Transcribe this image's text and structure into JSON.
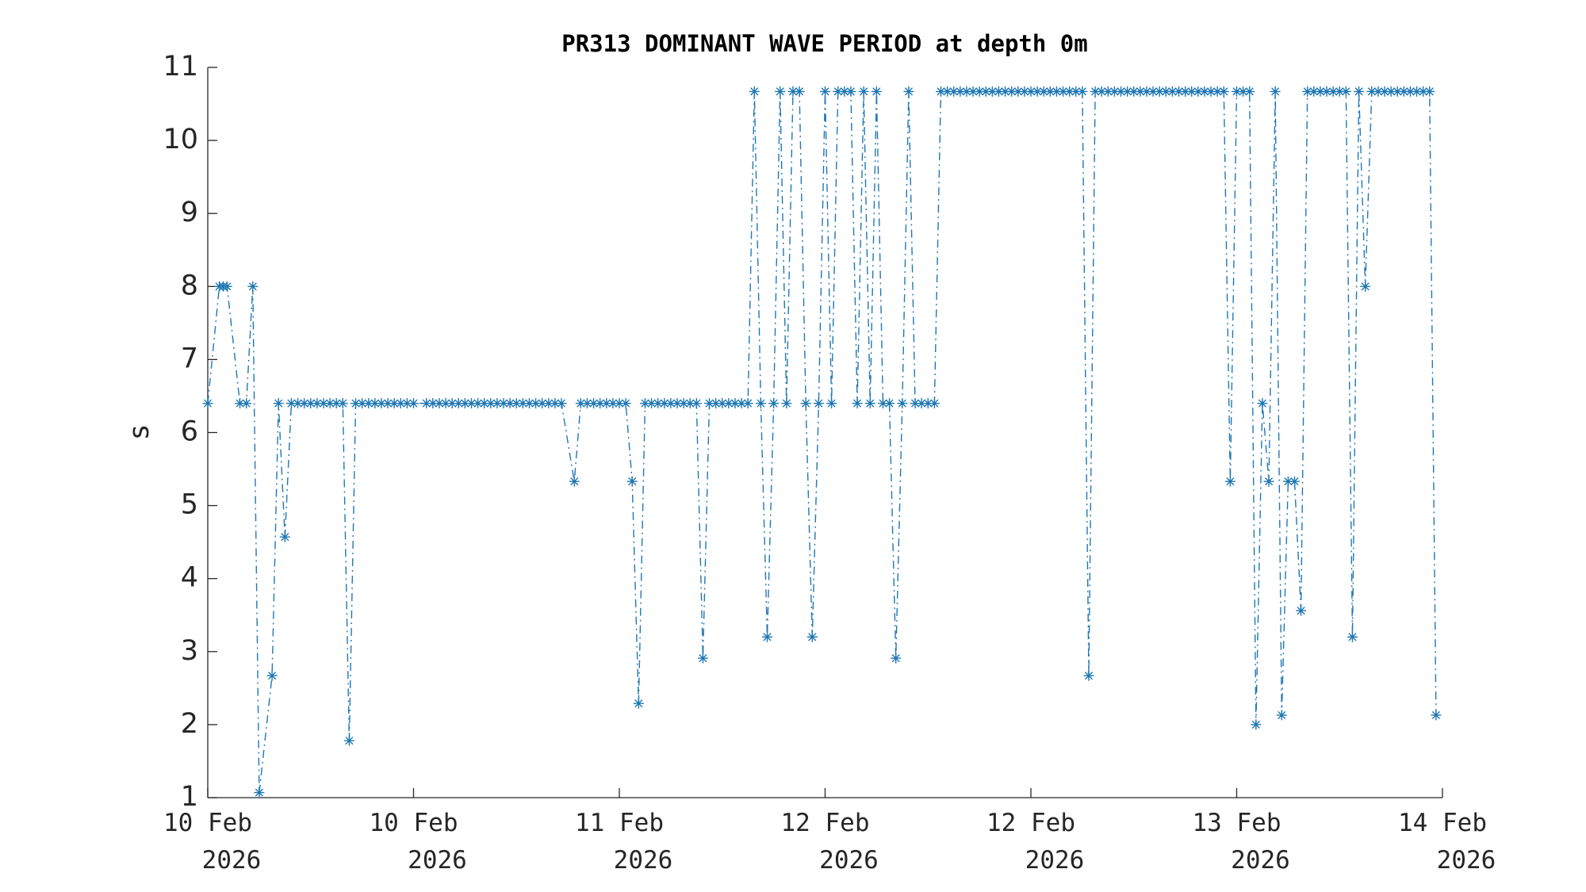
{
  "chart_data": {
    "type": "line",
    "title": "PR313 DOMINANT WAVE PERIOD at depth 0m",
    "ylabel": "s",
    "color": "#1f77b4",
    "line_style": "dash-dot",
    "marker": "asterisk",
    "x": [
      0,
      0.9,
      1.2,
      1.5,
      2.5,
      3,
      3.5,
      4,
      5,
      5.5,
      6,
      6.5,
      7,
      7.5,
      8,
      8.5,
      9,
      9.5,
      10,
      10.5,
      11,
      11.5,
      12,
      12.5,
      13,
      13.5,
      14,
      14.5,
      15,
      15.5,
      16,
      17,
      17.5,
      18,
      18.5,
      19,
      19.5,
      20,
      20.5,
      21,
      21.5,
      22,
      22.5,
      23,
      23.5,
      24,
      24.5,
      25,
      25.5,
      26,
      26.5,
      27,
      27.5,
      28.5,
      29,
      29.5,
      30,
      30.5,
      31,
      31.5,
      32,
      32.5,
      33,
      33.5,
      34,
      34.5,
      35,
      35.5,
      36,
      36.5,
      37,
      37.5,
      38,
      38.5,
      39,
      39.5,
      40,
      40.5,
      41,
      41.5,
      42,
      42.5,
      43,
      43.5,
      44,
      44.5,
      45,
      45.5,
      46,
      46.5,
      47,
      47.5,
      48,
      48.5,
      49,
      49.5,
      50,
      50.5,
      51,
      51.5,
      52,
      52.5,
      53,
      53.5,
      54,
      54.5,
      55,
      55.5,
      56,
      56.5,
      57,
      57.5,
      58,
      58.5,
      59,
      59.5,
      60,
      60.5,
      61,
      61.5,
      62,
      62.5,
      63,
      63.5,
      64,
      64.5,
      65,
      65.5,
      66,
      66.5,
      67,
      67.5,
      68,
      68.5,
      69,
      69.5,
      70,
      70.5,
      71,
      71.5,
      72,
      72.5,
      73,
      73.5,
      74,
      74.5,
      75,
      75.5,
      76,
      76.5,
      77,
      77.5,
      78,
      78.5,
      79,
      79.5,
      80,
      80.5,
      81,
      81.5,
      82,
      82.5,
      83,
      83.5,
      84,
      84.5,
      85,
      85.5,
      86,
      86.5,
      87,
      87.5,
      88,
      88.5,
      89,
      89.5,
      90,
      90.5,
      91,
      91.5,
      92,
      92.5,
      93,
      93.5,
      94,
      94.5,
      95,
      95.5
    ],
    "values": [
      6.4,
      8,
      8,
      8,
      6.4,
      6.4,
      8,
      1.07,
      2.67,
      6.4,
      4.57,
      6.4,
      6.4,
      6.4,
      6.4,
      6.4,
      6.4,
      6.4,
      6.4,
      6.4,
      1.78,
      6.4,
      6.4,
      6.4,
      6.4,
      6.4,
      6.4,
      6.4,
      6.4,
      6.4,
      6.4,
      6.4,
      6.4,
      6.4,
      6.4,
      6.4,
      6.4,
      6.4,
      6.4,
      6.4,
      6.4,
      6.4,
      6.4,
      6.4,
      6.4,
      6.4,
      6.4,
      6.4,
      6.4,
      6.4,
      6.4,
      6.4,
      6.4,
      5.33,
      6.4,
      6.4,
      6.4,
      6.4,
      6.4,
      6.4,
      6.4,
      6.4,
      5.33,
      2.29,
      6.4,
      6.4,
      6.4,
      6.4,
      6.4,
      6.4,
      6.4,
      6.4,
      6.4,
      2.91,
      6.4,
      6.4,
      6.4,
      6.4,
      6.4,
      6.4,
      6.4,
      10.67,
      6.4,
      3.2,
      6.4,
      10.67,
      6.4,
      10.67,
      10.67,
      6.4,
      3.2,
      6.4,
      10.67,
      6.4,
      10.67,
      10.67,
      10.67,
      6.4,
      10.67,
      6.4,
      10.67,
      6.4,
      6.4,
      2.91,
      6.4,
      10.67,
      6.4,
      6.4,
      6.4,
      6.4,
      10.67,
      10.67,
      10.67,
      10.67,
      10.67,
      10.67,
      10.67,
      10.67,
      10.67,
      10.67,
      10.67,
      10.67,
      10.67,
      10.67,
      10.67,
      10.67,
      10.67,
      10.67,
      10.67,
      10.67,
      10.67,
      10.67,
      10.67,
      2.67,
      10.67,
      10.67,
      10.67,
      10.67,
      10.67,
      10.67,
      10.67,
      10.67,
      10.67,
      10.67,
      10.67,
      10.67,
      10.67,
      10.67,
      10.67,
      10.67,
      10.67,
      10.67,
      10.67,
      10.67,
      10.67,
      5.33,
      10.67,
      10.67,
      10.67,
      2,
      6.4,
      5.33,
      10.67,
      2.13,
      5.33,
      5.33,
      3.56,
      10.67,
      10.67,
      10.67,
      10.67,
      10.67,
      10.67,
      10.67,
      3.2,
      10.67,
      8,
      10.67,
      10.67,
      10.67,
      10.67,
      10.67,
      10.67,
      10.67,
      10.67,
      10.67,
      10.67,
      2.13
    ],
    "xlim": [
      0,
      96
    ],
    "xticks": [
      {
        "value": 0,
        "label": "10 Feb\n2026"
      },
      {
        "value": 16,
        "label": "10 Feb\n2026"
      },
      {
        "value": 32,
        "label": "11 Feb\n2026"
      },
      {
        "value": 48,
        "label": "12 Feb\n2026"
      },
      {
        "value": 64,
        "label": "12 Feb\n2026"
      },
      {
        "value": 80,
        "label": "13 Feb\n2026"
      },
      {
        "value": 96,
        "label": "14 Feb\n2026"
      }
    ],
    "ylim": [
      1,
      11
    ],
    "yticks": [
      1,
      2,
      3,
      4,
      5,
      6,
      7,
      8,
      9,
      10,
      11
    ]
  }
}
